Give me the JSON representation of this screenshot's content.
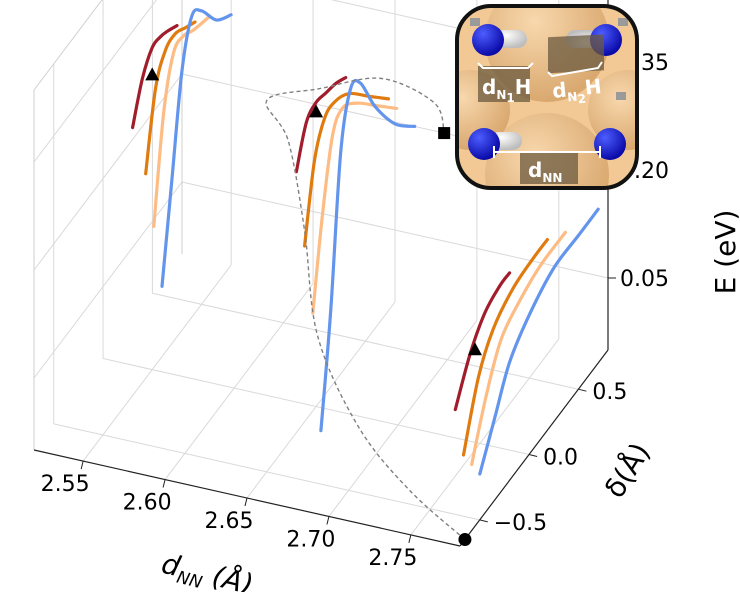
{
  "chart_data": {
    "type": "line",
    "projection": "3d",
    "title": "",
    "axes": {
      "x": {
        "label_main": "d",
        "label_sub": "NN",
        "label_rest": " (Å)",
        "ticks": [
          "2.55",
          "2.60",
          "2.65",
          "2.70",
          "2.75"
        ],
        "range": [
          2.52,
          2.78
        ]
      },
      "y": {
        "label": "δ(Å)",
        "ticks": [
          "−0.5",
          "0.0",
          "0.5"
        ],
        "range": [
          -0.7,
          0.8
        ]
      },
      "z": {
        "label": "E (eV)",
        "ticks": [
          "0.05",
          "0.20",
          "0.35"
        ],
        "range": [
          -0.05,
          0.45
        ]
      }
    },
    "grid": true,
    "series_colors": [
      "#a11d2b",
      "#e07b10",
      "#fdbc84",
      "#6495ed"
    ],
    "path_color": "#808080",
    "groups": [
      {
        "d_nn": 2.55,
        "series": [
          {
            "color": "#a11d2b",
            "delta": [
              0.0,
              0.1,
              0.2,
              0.28,
              0.35,
              0.45
            ],
            "energy": [
              0.28,
              0.33,
              0.355,
              0.355,
              0.35,
              0.34
            ]
          },
          {
            "color": "#e07b10",
            "delta": [
              0.0,
              0.1,
              0.2,
              0.3,
              0.4,
              0.5
            ],
            "energy": [
              0.22,
              0.32,
              0.355,
              0.36,
              0.35,
              0.34
            ]
          },
          {
            "color": "#fdbc84",
            "delta": [
              -0.05,
              0.05,
              0.15,
              0.25,
              0.35,
              0.5
            ],
            "energy": [
              0.16,
              0.3,
              0.365,
              0.37,
              0.36,
              0.35
            ]
          },
          {
            "color": "#6495ed",
            "delta": [
              -0.1,
              0.0,
              0.1,
              0.2,
              0.3,
              0.45,
              0.6
            ],
            "energy": [
              0.09,
              0.22,
              0.35,
              0.41,
              0.4,
              0.36,
              0.34
            ]
          }
        ]
      },
      {
        "d_nn": 2.65,
        "series": [
          {
            "color": "#a11d2b",
            "delta": [
              0.0,
              0.1,
              0.2,
              0.3,
              0.4,
              0.5
            ],
            "energy": [
              0.27,
              0.32,
              0.33,
              0.325,
              0.32,
              0.31
            ]
          },
          {
            "color": "#e07b10",
            "delta": [
              -0.05,
              0.05,
              0.15,
              0.25,
              0.4,
              0.6,
              0.8
            ],
            "energy": [
              0.18,
              0.28,
              0.32,
              0.325,
              0.31,
              0.27,
              0.23
            ]
          },
          {
            "color": "#fdbc84",
            "delta": [
              -0.1,
              0.0,
              0.1,
              0.2,
              0.35,
              0.55,
              0.75
            ],
            "energy": [
              0.1,
              0.22,
              0.31,
              0.33,
              0.31,
              0.27,
              0.23
            ]
          },
          {
            "color": "#6495ed",
            "delta": [
              -0.15,
              -0.05,
              0.05,
              0.15,
              0.25,
              0.4,
              0.6,
              0.8
            ],
            "energy": [
              -0.05,
              0.1,
              0.3,
              0.37,
              0.36,
              0.3,
              0.24,
              0.2
            ]
          }
        ]
      },
      {
        "d_nn": 2.75,
        "series": [
          {
            "color": "#a11d2b",
            "delta": [
              -0.05,
              0.1,
              0.25,
              0.4,
              0.5
            ],
            "energy": [
              0.0,
              0.05,
              0.08,
              0.09,
              0.09
            ]
          },
          {
            "color": "#e07b10",
            "delta": [
              -0.1,
              0.05,
              0.2,
              0.4,
              0.6,
              0.75
            ],
            "energy": [
              -0.05,
              0.03,
              0.07,
              0.09,
              0.095,
              0.095
            ]
          },
          {
            "color": "#fdbc84",
            "delta": [
              -0.15,
              0.0,
              0.15,
              0.35,
              0.55,
              0.8
            ],
            "energy": [
              -0.05,
              0.02,
              0.07,
              0.09,
              0.1,
              0.1
            ]
          },
          {
            "color": "#6495ed",
            "delta": [
              -0.2,
              -0.05,
              0.1,
              0.3,
              0.55,
              0.8,
              1.0
            ],
            "energy": [
              -0.05,
              0.0,
              0.05,
              0.08,
              0.1,
              0.1,
              0.1
            ]
          }
        ]
      }
    ],
    "min_energy_path": [
      {
        "d_nn": 2.78,
        "delta": -0.65,
        "energy": -0.05
      },
      {
        "d_nn": 2.74,
        "delta": -0.55,
        "energy": -0.02
      },
      {
        "d_nn": 2.7,
        "delta": -0.4,
        "energy": 0.02
      },
      {
        "d_nn": 2.66,
        "delta": -0.15,
        "energy": 0.08
      },
      {
        "d_nn": 2.64,
        "delta": 0.05,
        "energy": 0.18
      },
      {
        "d_nn": 2.63,
        "delta": 0.05,
        "energy": 0.3
      },
      {
        "d_nn": 2.62,
        "delta": 0.0,
        "energy": 0.36
      },
      {
        "d_nn": 2.64,
        "delta": 0.2,
        "energy": 0.35
      },
      {
        "d_nn": 2.66,
        "delta": 0.5,
        "energy": 0.32
      },
      {
        "d_nn": 2.68,
        "delta": 0.7,
        "energy": 0.26
      },
      {
        "d_nn": 2.68,
        "delta": 0.8,
        "energy": 0.2
      }
    ],
    "markers": [
      {
        "shape": "triangle",
        "d_nn": 2.55,
        "delta": 0.0,
        "energy": 0.36
      },
      {
        "shape": "triangle",
        "d_nn": 2.65,
        "delta": 0.0,
        "energy": 0.36
      },
      {
        "shape": "triangle",
        "d_nn": 2.75,
        "delta": -0.05,
        "energy": 0.09
      },
      {
        "shape": "square",
        "d_nn": 2.68,
        "delta": 0.8,
        "energy": 0.2
      },
      {
        "shape": "circle",
        "d_nn": 2.78,
        "delta": -0.65,
        "energy": -0.05
      }
    ]
  },
  "inset": {
    "labels": [
      {
        "main": "d",
        "sub": "N",
        "sub_num": "1",
        "tail": "H"
      },
      {
        "main": "d",
        "sub": "N",
        "sub_num": "2",
        "tail": "H"
      },
      {
        "main": "d",
        "sub": "NN",
        "sub_num": "",
        "tail": ""
      }
    ],
    "colors": {
      "nitrogen": "#1515d6",
      "hydrogen": "#f2f2f2",
      "lattice": "#f2c995",
      "lattice_dark": "#e0b27e",
      "frame": "#111111"
    }
  }
}
